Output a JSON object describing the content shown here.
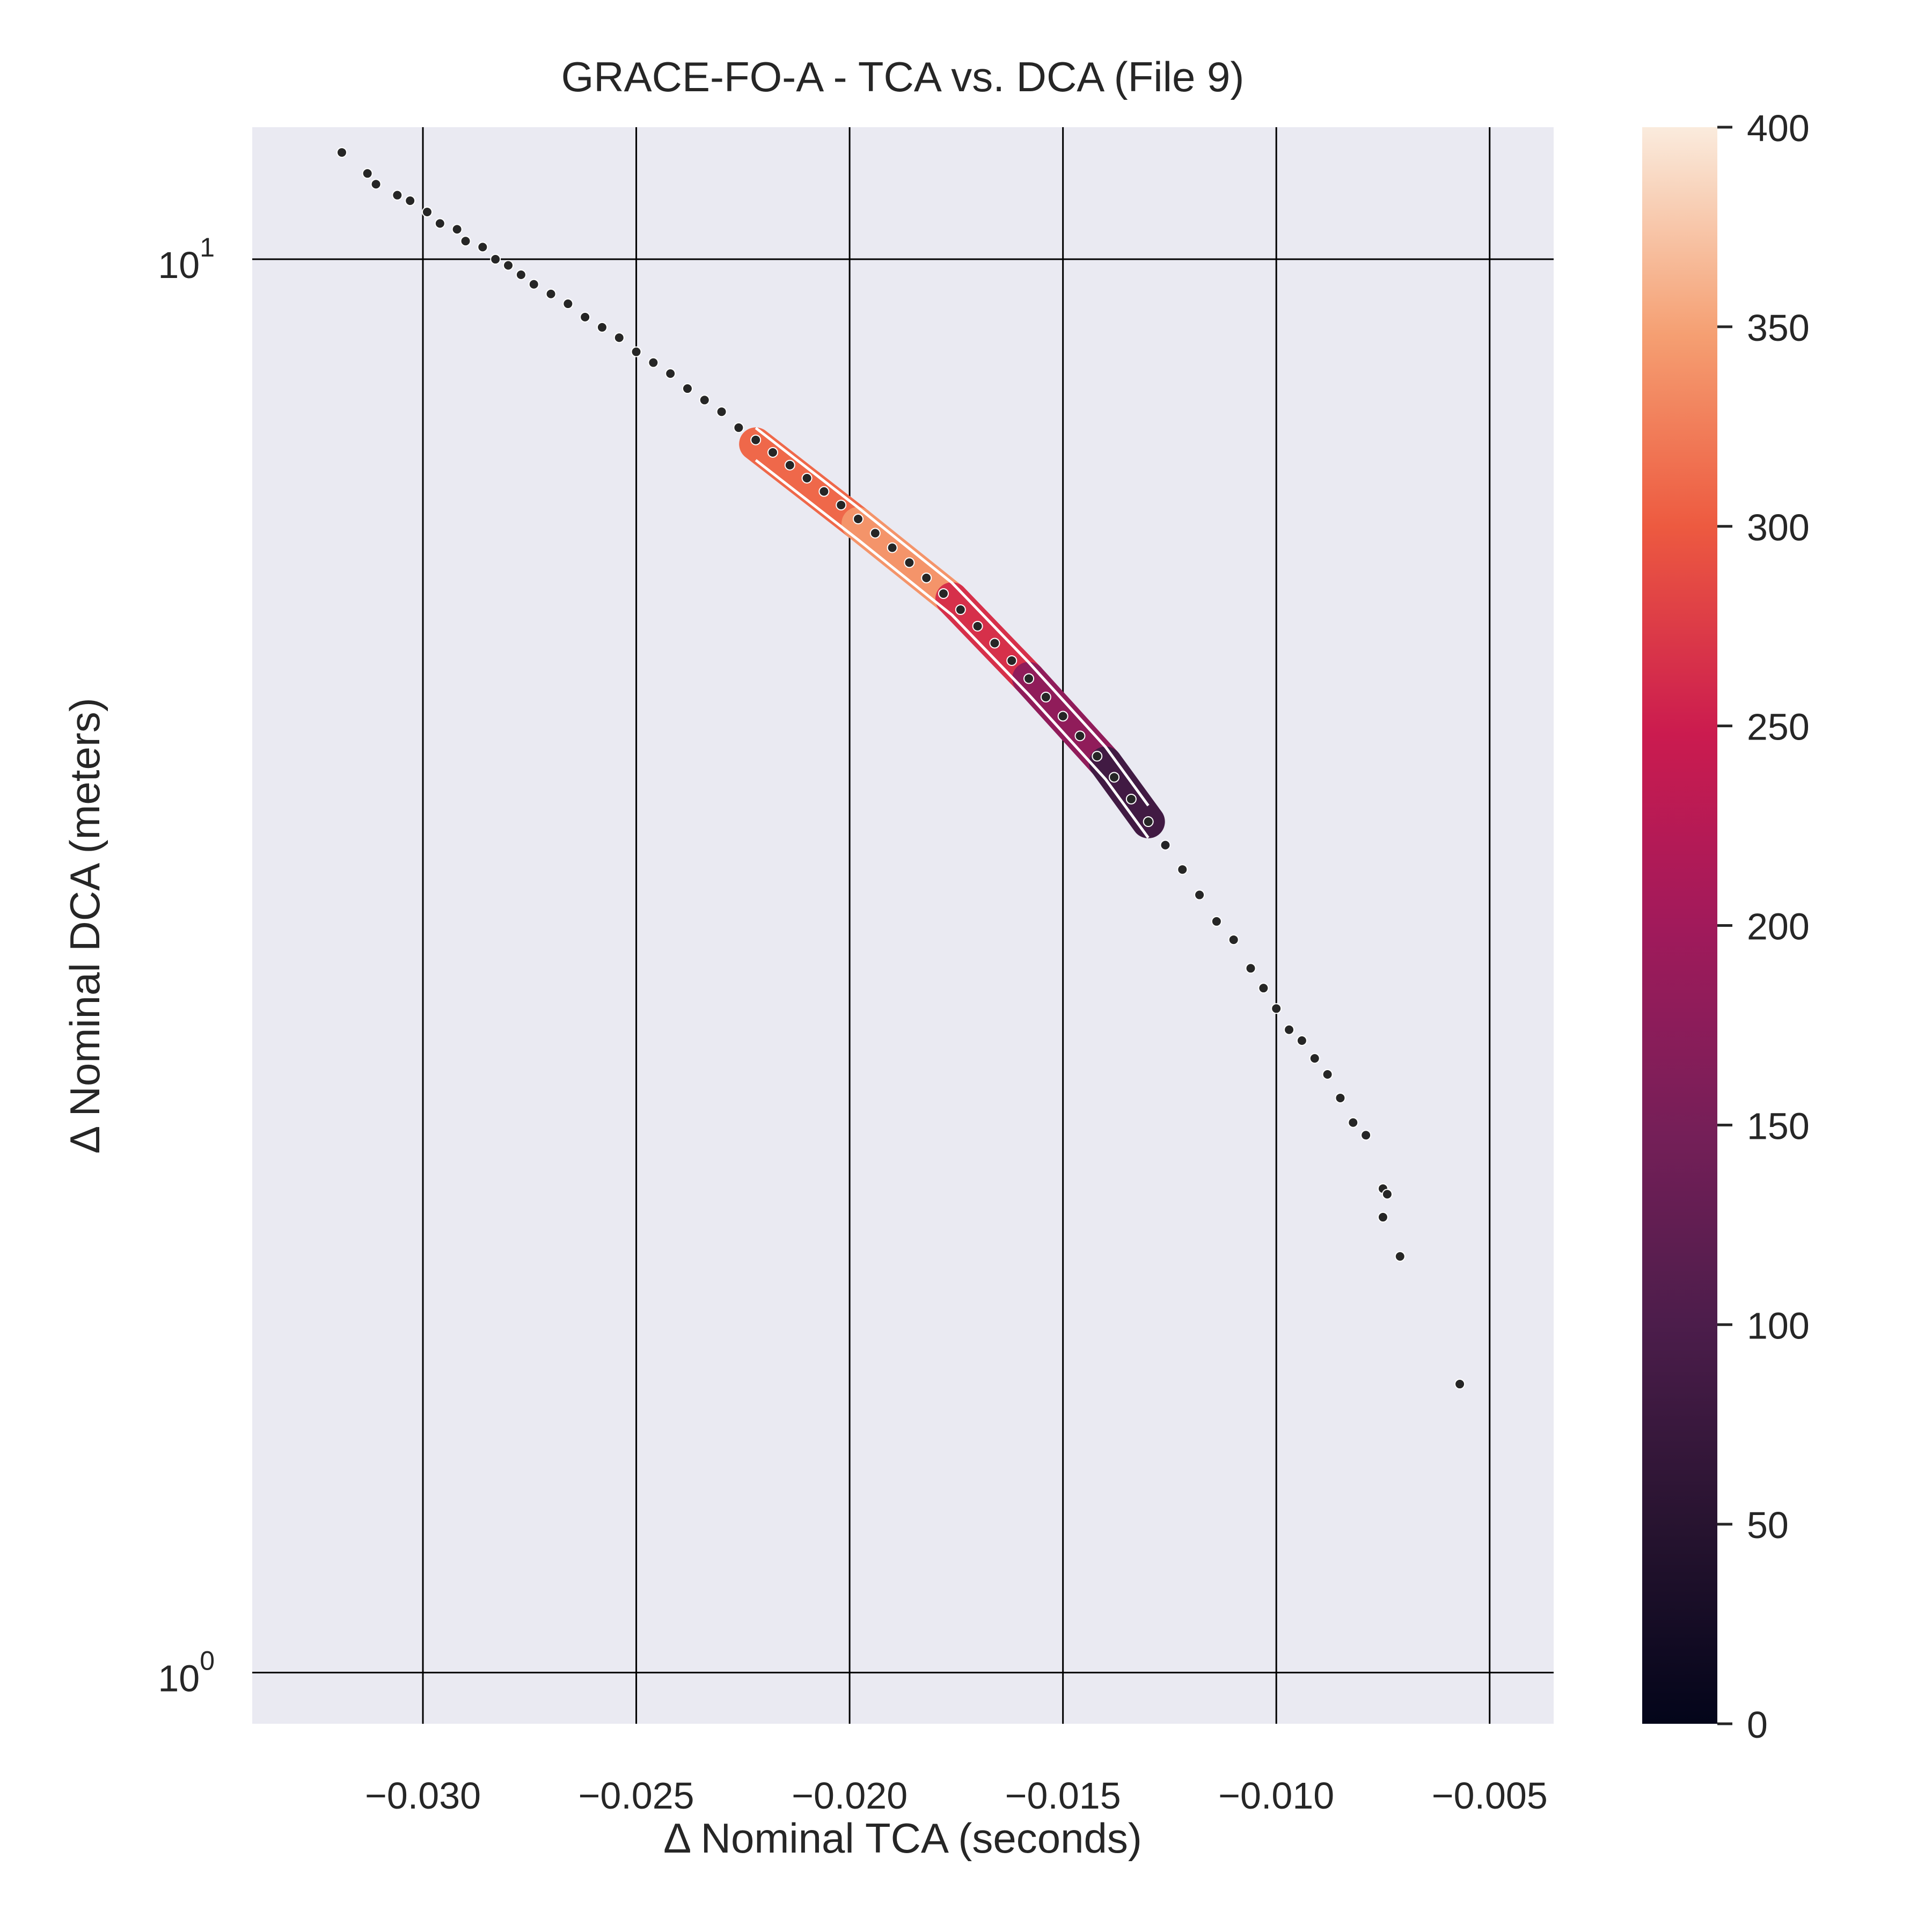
{
  "chart_data": {
    "type": "scatter",
    "title": "GRACE-FO-A - TCA vs. DCA (File 9)",
    "xlabel": "Δ Nominal TCA (seconds)",
    "ylabel": "Δ Nominal DCA (meters)",
    "xlim": [
      -0.034,
      -0.0035
    ],
    "ylim": [
      0.92,
      12.4
    ],
    "yscale": "log",
    "grid": true,
    "background_color": "#eaeaf2",
    "x_ticks": [
      "−0.030",
      "−0.025",
      "−0.020",
      "−0.015",
      "−0.010",
      "−0.005"
    ],
    "x_tick_values": [
      -0.03,
      -0.025,
      -0.02,
      -0.015,
      -0.01,
      -0.005
    ],
    "y_ticks": [
      {
        "base": "10",
        "exp": "0",
        "value": 1
      },
      {
        "base": "10",
        "exp": "1",
        "value": 10
      }
    ],
    "colorbar": {
      "colormap": "rocket",
      "range": [
        0,
        400
      ],
      "ticks": [
        "0",
        "50",
        "100",
        "150",
        "200",
        "250",
        "300",
        "350",
        "400"
      ],
      "tick_values": [
        0,
        50,
        100,
        150,
        200,
        250,
        300,
        350,
        400
      ]
    },
    "points": [
      [
        -0.0319,
        11.9
      ],
      [
        -0.0313,
        11.5
      ],
      [
        -0.0311,
        11.3
      ],
      [
        -0.0306,
        11.1
      ],
      [
        -0.0303,
        11.0
      ],
      [
        -0.0299,
        10.8
      ],
      [
        -0.0296,
        10.6
      ],
      [
        -0.0292,
        10.5
      ],
      [
        -0.029,
        10.3
      ],
      [
        -0.0286,
        10.2
      ],
      [
        -0.0283,
        10.0
      ],
      [
        -0.028,
        9.9
      ],
      [
        -0.0277,
        9.75
      ],
      [
        -0.0274,
        9.6
      ],
      [
        -0.027,
        9.45
      ],
      [
        -0.0266,
        9.3
      ],
      [
        -0.0262,
        9.1
      ],
      [
        -0.0258,
        8.95
      ],
      [
        -0.0254,
        8.8
      ],
      [
        -0.025,
        8.6
      ],
      [
        -0.0246,
        8.45
      ],
      [
        -0.0242,
        8.3
      ],
      [
        -0.0238,
        8.1
      ],
      [
        -0.0234,
        7.95
      ],
      [
        -0.023,
        7.8
      ],
      [
        -0.0226,
        7.6
      ],
      [
        -0.0222,
        7.45
      ],
      [
        -0.0218,
        7.3
      ],
      [
        -0.0214,
        7.15
      ],
      [
        -0.021,
        7.0
      ],
      [
        -0.0206,
        6.85
      ],
      [
        -0.0202,
        6.7
      ],
      [
        -0.0198,
        6.55
      ],
      [
        -0.0194,
        6.4
      ],
      [
        -0.019,
        6.25
      ],
      [
        -0.0186,
        6.1
      ],
      [
        -0.0182,
        5.95
      ],
      [
        -0.0178,
        5.8
      ],
      [
        -0.0174,
        5.65
      ],
      [
        -0.017,
        5.5
      ],
      [
        -0.0166,
        5.35
      ],
      [
        -0.0162,
        5.2
      ],
      [
        -0.0158,
        5.05
      ],
      [
        -0.0154,
        4.9
      ],
      [
        -0.015,
        4.75
      ],
      [
        -0.0146,
        4.6
      ],
      [
        -0.0142,
        4.45
      ],
      [
        -0.0138,
        4.3
      ],
      [
        -0.0134,
        4.15
      ],
      [
        -0.013,
        4.0
      ],
      [
        -0.0126,
        3.85
      ],
      [
        -0.0122,
        3.7
      ],
      [
        -0.0118,
        3.55
      ],
      [
        -0.0114,
        3.4
      ],
      [
        -0.011,
        3.3
      ],
      [
        -0.0106,
        3.15
      ],
      [
        -0.0103,
        3.05
      ],
      [
        -0.01,
        2.95
      ],
      [
        -0.0097,
        2.85
      ],
      [
        -0.0094,
        2.8
      ],
      [
        -0.0091,
        2.72
      ],
      [
        -0.0088,
        2.65
      ],
      [
        -0.0085,
        2.55
      ],
      [
        -0.0082,
        2.45
      ],
      [
        -0.0079,
        2.4
      ],
      [
        -0.0075,
        2.2
      ],
      [
        -0.0074,
        2.18
      ],
      [
        -0.0075,
        2.1
      ],
      [
        -0.0071,
        1.97
      ],
      [
        -0.0057,
        1.6
      ]
    ],
    "density_regions": [
      {
        "x": -0.0222,
        "y": 7.4,
        "density": 240
      },
      {
        "x": -0.0198,
        "y": 6.5,
        "density": 380
      },
      {
        "x": -0.0176,
        "y": 5.75,
        "density": 300
      },
      {
        "x": -0.0158,
        "y": 5.05,
        "density": 230
      },
      {
        "x": -0.014,
        "y": 4.4,
        "density": 130
      },
      {
        "x": -0.013,
        "y": 4.0,
        "density": 40
      }
    ]
  }
}
